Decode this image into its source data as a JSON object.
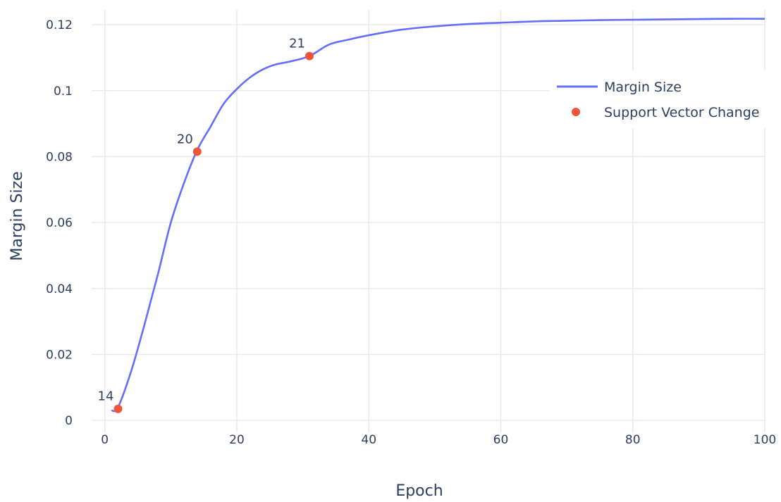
{
  "chart_data": {
    "type": "line",
    "title": "",
    "xlabel": "Epoch",
    "ylabel": "Margin Size",
    "xlim": [
      -2,
      100
    ],
    "ylim": [
      -0.0036,
      0.1245
    ],
    "x_ticks": [
      0,
      20,
      40,
      60,
      80,
      100
    ],
    "x_tick_labels": [
      "0",
      "20",
      "40",
      "60",
      "80",
      "100"
    ],
    "y_ticks": [
      0,
      0.02,
      0.04,
      0.06,
      0.08,
      0.1,
      0.12
    ],
    "y_tick_labels": [
      "0",
      "0.02",
      "0.04",
      "0.06",
      "0.08",
      "0.1",
      "0.12"
    ],
    "grid": true,
    "legend_position": "top-right",
    "series": [
      {
        "name": "Margin Size",
        "type": "line",
        "color": "#636efa",
        "x": [
          1,
          2,
          4,
          6,
          8,
          10,
          12,
          14,
          16,
          18,
          20,
          22,
          24,
          26,
          28,
          31,
          34,
          37,
          40,
          45,
          50,
          55,
          60,
          65,
          70,
          75,
          80,
          85,
          90,
          95,
          100
        ],
        "y": [
          0.003,
          0.004,
          0.015,
          0.029,
          0.044,
          0.06,
          0.072,
          0.082,
          0.089,
          0.096,
          0.1005,
          0.104,
          0.1065,
          0.108,
          0.1088,
          0.1105,
          0.114,
          0.1155,
          0.1168,
          0.1185,
          0.1195,
          0.1202,
          0.1206,
          0.121,
          0.1212,
          0.1214,
          0.1215,
          0.1216,
          0.1217,
          0.1218,
          0.1218
        ]
      },
      {
        "name": "Support Vector Change",
        "type": "scatter",
        "color": "#ef553b",
        "x": [
          2,
          14,
          31
        ],
        "y": [
          0.0035,
          0.0815,
          0.1105
        ],
        "labels": [
          "14",
          "20",
          "21"
        ]
      }
    ]
  }
}
